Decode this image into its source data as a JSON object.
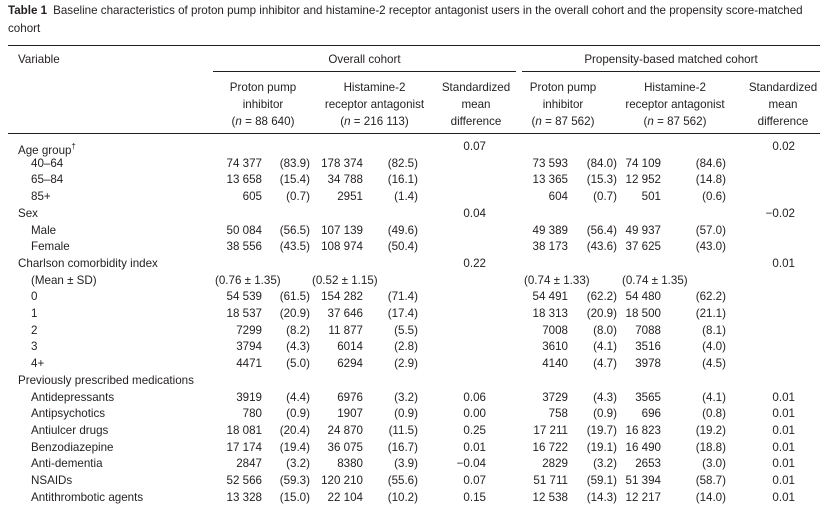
{
  "caption": {
    "label": "Table 1",
    "text": "Baseline characteristics of proton pump inhibitor and histamine-2 receptor antagonist users in the overall cohort and the propensity score-matched cohort"
  },
  "header": {
    "variable": "Variable",
    "overall_cohort": "Overall cohort",
    "matched_cohort": "Propensity-based matched cohort",
    "columns": [
      {
        "l1": "Proton pump",
        "l2": "inhibitor",
        "n": "88 640"
      },
      {
        "l1": "Histamine-2",
        "l2": "receptor antagonist",
        "n": "216 113"
      },
      {
        "l1": "Standardized",
        "l2": "mean",
        "l3": "difference"
      },
      {
        "l1": "Proton pump",
        "l2": "inhibitor",
        "n": "87 562"
      },
      {
        "l1": "Histamine-2",
        "l2": "receptor antagonist",
        "n": "87 562"
      },
      {
        "l1": "Standardized",
        "l2": "mean",
        "l3": "difference"
      }
    ]
  },
  "rows": [
    {
      "label": "Age group",
      "sup": "†",
      "indent": false,
      "smd1": "0.07",
      "smd2": "0.02"
    },
    {
      "label": "40–64",
      "indent": true,
      "a": "74 377",
      "ap": "(83.9)",
      "b": "178 374",
      "bp": "(82.5)",
      "c": "73 593",
      "cp": "(84.0)",
      "d": "74 109",
      "dp": "(84.6)"
    },
    {
      "label": "65–84",
      "indent": true,
      "a": "13 658",
      "ap": "(15.4)",
      "b": "34 788",
      "bp": "(16.1)",
      "c": "13 365",
      "cp": "(15.3)",
      "d": "12 952",
      "dp": "(14.8)"
    },
    {
      "label": "85+",
      "indent": true,
      "a": "605",
      "ap": "(0.7)",
      "b": "2951",
      "bp": "(1.4)",
      "c": "604",
      "cp": "(0.7)",
      "d": "501",
      "dp": "(0.6)"
    },
    {
      "label": "Sex",
      "indent": false,
      "smd1": "0.04",
      "smd2": "−0.02"
    },
    {
      "label": "Male",
      "indent": true,
      "a": "50 084",
      "ap": "(56.5)",
      "b": "107 139",
      "bp": "(49.6)",
      "c": "49 389",
      "cp": "(56.4)",
      "d": "49 937",
      "dp": "(57.0)"
    },
    {
      "label": "Female",
      "indent": true,
      "a": "38 556",
      "ap": "(43.5)",
      "b": "108 974",
      "bp": "(50.4)",
      "c": "38 173",
      "cp": "(43.6)",
      "d": "37 625",
      "dp": "(43.0)"
    },
    {
      "label": "Charlson comorbidity index",
      "indent": false,
      "smd1": "0.22",
      "smd2": "0.01"
    },
    {
      "label": "(Mean ± SD)",
      "indent": true,
      "msd_a": "(0.76 ± 1.35)",
      "msd_b": "(0.52 ± 1.15)",
      "msd_c": "(0.74 ± 1.33)",
      "msd_d": "(0.74 ± 1.35)"
    },
    {
      "label": "0",
      "indent": true,
      "a": "54 539",
      "ap": "(61.5)",
      "b": "154 282",
      "bp": "(71.4)",
      "c": "54 491",
      "cp": "(62.2)",
      "d": "54 480",
      "dp": "(62.2)"
    },
    {
      "label": "1",
      "indent": true,
      "a": "18 537",
      "ap": "(20.9)",
      "b": "37 646",
      "bp": "(17.4)",
      "c": "18 313",
      "cp": "(20.9)",
      "d": "18 500",
      "dp": "(21.1)"
    },
    {
      "label": "2",
      "indent": true,
      "a": "7299",
      "ap": "(8.2)",
      "b": "11 877",
      "bp": "(5.5)",
      "c": "7008",
      "cp": "(8.0)",
      "d": "7088",
      "dp": "(8.1)"
    },
    {
      "label": "3",
      "indent": true,
      "a": "3794",
      "ap": "(4.3)",
      "b": "6014",
      "bp": "(2.8)",
      "c": "3610",
      "cp": "(4.1)",
      "d": "3516",
      "dp": "(4.0)"
    },
    {
      "label": "4+",
      "indent": true,
      "a": "4471",
      "ap": "(5.0)",
      "b": "6294",
      "bp": "(2.9)",
      "c": "4140",
      "cp": "(4.7)",
      "d": "3978",
      "dp": "(4.5)"
    },
    {
      "label": "Previously prescribed medications",
      "indent": false
    },
    {
      "label": "Antidepressants",
      "indent": true,
      "a": "3919",
      "ap": "(4.4)",
      "b": "6976",
      "bp": "(3.2)",
      "smd1": "0.06",
      "c": "3729",
      "cp": "(4.3)",
      "d": "3565",
      "dp": "(4.1)",
      "smd2": "0.01"
    },
    {
      "label": "Antipsychotics",
      "indent": true,
      "a": "780",
      "ap": "(0.9)",
      "b": "1907",
      "bp": "(0.9)",
      "smd1": "0.00",
      "c": "758",
      "cp": "(0.9)",
      "d": "696",
      "dp": "(0.8)",
      "smd2": "0.01"
    },
    {
      "label": "Antiulcer drugs",
      "indent": true,
      "a": "18 081",
      "ap": "(20.4)",
      "b": "24 870",
      "bp": "(11.5)",
      "smd1": "0.25",
      "c": "17 211",
      "cp": "(19.7)",
      "d": "16 823",
      "dp": "(19.2)",
      "smd2": "0.01"
    },
    {
      "label": "Benzodiazepine",
      "indent": true,
      "a": "17 174",
      "ap": "(19.4)",
      "b": "36 075",
      "bp": "(16.7)",
      "smd1": "0.01",
      "c": "16 722",
      "cp": "(19.1)",
      "d": "16 490",
      "dp": "(18.8)",
      "smd2": "0.01"
    },
    {
      "label": "Anti-dementia",
      "indent": true,
      "a": "2847",
      "ap": "(3.2)",
      "b": "8380",
      "bp": "(3.9)",
      "smd1": "−0.04",
      "c": "2829",
      "cp": "(3.2)",
      "d": "2653",
      "dp": "(3.0)",
      "smd2": "0.01"
    },
    {
      "label": "NSAIDs",
      "indent": true,
      "a": "52 566",
      "ap": "(59.3)",
      "b": "120 210",
      "bp": "(55.6)",
      "smd1": "0.07",
      "c": "51 711",
      "cp": "(59.1)",
      "d": "51 394",
      "dp": "(58.7)",
      "smd2": "0.01"
    },
    {
      "label": "Antithrombotic agents",
      "indent": true,
      "a": "13 328",
      "ap": "(15.0)",
      "b": "22 104",
      "bp": "(10.2)",
      "smd1": "0.15",
      "c": "12 538",
      "cp": "(14.3)",
      "d": "12 217",
      "dp": "(14.0)",
      "smd2": "0.01"
    }
  ]
}
